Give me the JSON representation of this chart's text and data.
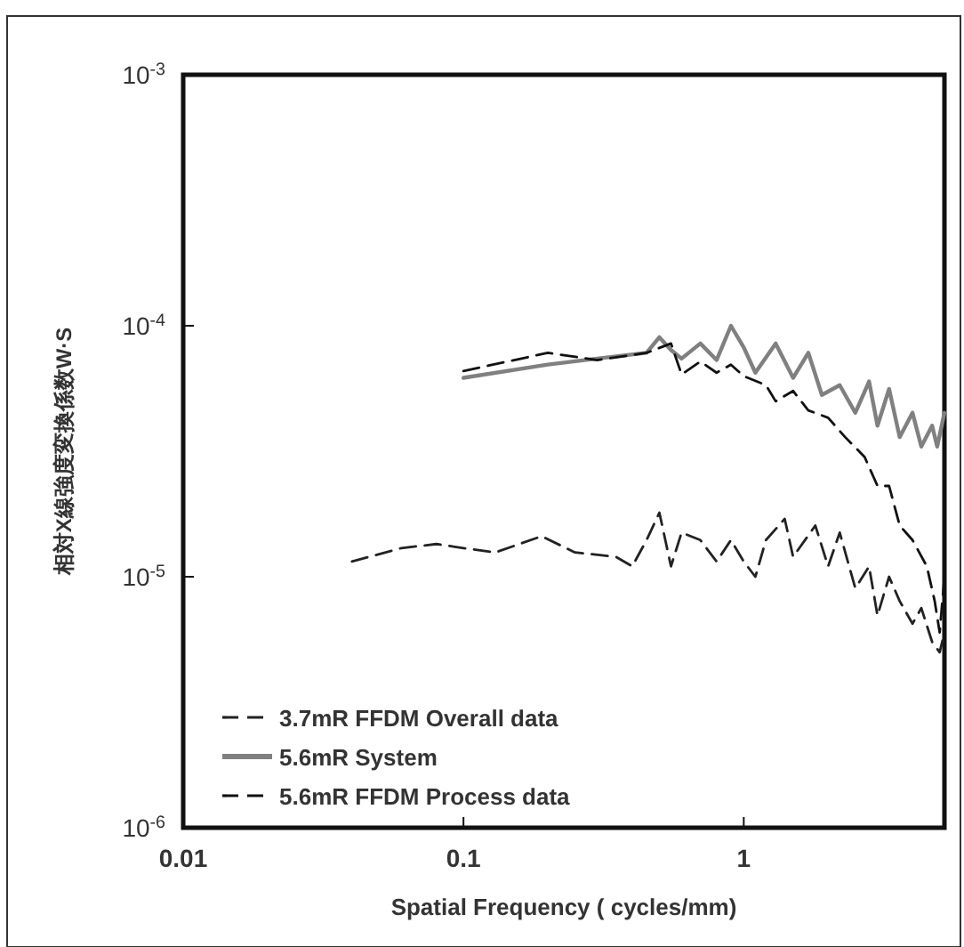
{
  "chart_data": {
    "type": "line",
    "xlabel": "Spatial Frequency ( cycles/mm)",
    "ylabel": "相対X線強度変換係数W·S",
    "log": "xy",
    "xlim": [
      0.01,
      5.2
    ],
    "ylim": [
      1e-06,
      0.001
    ],
    "xticks": [
      0.01,
      0.1,
      1
    ],
    "yticks": [
      {
        "value": 1e-06,
        "label": "10$^{-6}$"
      },
      {
        "value": 1e-05,
        "label": "10$^{-5}$"
      },
      {
        "value": 0.0001,
        "label": "10$^{-4}$"
      },
      {
        "value": 0.001,
        "label": "10$^{-3}$"
      }
    ],
    "grid": false,
    "legend": "bottom left",
    "marker": "none",
    "series": [
      {
        "name": "3.7mR FFDM Overall data",
        "color": "#222222",
        "line_style": "dashed",
        "x": [
          0.04,
          0.06,
          0.08,
          0.1,
          0.13,
          0.19,
          0.25,
          0.35,
          0.4,
          0.45,
          0.5,
          0.55,
          0.6,
          0.7,
          0.8,
          0.9,
          1.0,
          1.1,
          1.2,
          1.4,
          1.5,
          1.8,
          2.0,
          2.2,
          2.5,
          2.8,
          3.0,
          3.3,
          3.6,
          4.0,
          4.3,
          4.7,
          5.0,
          5.2
        ],
        "values": [
          1.15e-05,
          1.3e-05,
          1.35e-05,
          1.3e-05,
          1.25e-05,
          1.45e-05,
          1.25e-05,
          1.2e-05,
          1.1e-05,
          1.4e-05,
          1.8e-05,
          1.1e-05,
          1.5e-05,
          1.4e-05,
          1.15e-05,
          1.4e-05,
          1.15e-05,
          1e-05,
          1.4e-05,
          1.7e-05,
          1.2e-05,
          1.6e-05,
          1.1e-05,
          1.5e-05,
          9e-06,
          1.1e-05,
          7e-06,
          1e-05,
          8e-06,
          6.5e-06,
          7.5e-06,
          5.5e-06,
          5e-06,
          6e-06
        ]
      },
      {
        "name": "5.6mR System",
        "color": "#808080",
        "line_style": "solid",
        "x": [
          0.1,
          0.2,
          0.3,
          0.45,
          0.5,
          0.55,
          0.6,
          0.7,
          0.8,
          0.9,
          1.0,
          1.1,
          1.3,
          1.5,
          1.7,
          1.9,
          2.2,
          2.5,
          2.8,
          3.0,
          3.3,
          3.6,
          4.0,
          4.3,
          4.7,
          4.9,
          5.2
        ],
        "values": [
          6.2e-05,
          7e-05,
          7.4e-05,
          7.8e-05,
          9e-05,
          8e-05,
          7.4e-05,
          8.5e-05,
          7.3e-05,
          0.0001,
          8.2e-05,
          6.5e-05,
          8.5e-05,
          6.2e-05,
          7.8e-05,
          5.3e-05,
          5.8e-05,
          4.5e-05,
          6e-05,
          4e-05,
          5.6e-05,
          3.6e-05,
          4.5e-05,
          3.3e-05,
          4e-05,
          3.3e-05,
          4.5e-05
        ]
      },
      {
        "name": "5.6mR FFDM Process data",
        "color": "#111111",
        "line_style": "dashed",
        "x": [
          0.1,
          0.2,
          0.3,
          0.45,
          0.55,
          0.6,
          0.7,
          0.8,
          0.9,
          1.0,
          1.2,
          1.3,
          1.5,
          1.7,
          2.0,
          2.3,
          2.7,
          3.0,
          3.3,
          3.6,
          4.0,
          4.5,
          4.8,
          5.0,
          5.2
        ],
        "values": [
          6.6e-05,
          7.8e-05,
          7.3e-05,
          7.8e-05,
          8.5e-05,
          6.4e-05,
          7.2e-05,
          6.5e-05,
          7e-05,
          6.3e-05,
          5.8e-05,
          5e-05,
          5.5e-05,
          4.6e-05,
          4.3e-05,
          3.6e-05,
          3e-05,
          2.3e-05,
          2.3e-05,
          1.6e-05,
          1.4e-05,
          1.1e-05,
          8e-06,
          6e-06,
          1e-05
        ]
      }
    ]
  }
}
